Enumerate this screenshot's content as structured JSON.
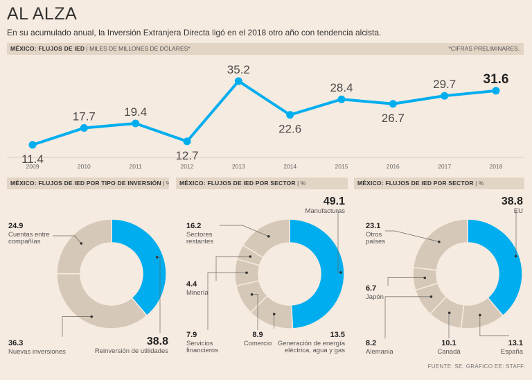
{
  "header": {
    "title": "AL ALZA",
    "subtitle": "En su acumulado anual, la Inversión Extranjera Directa ligó en el 2018 otro año con tendencia alcista."
  },
  "line_section": {
    "label_bold": "MÉXICO: FLUJOS DE IED",
    "label_unit": "MILES DE MILLONES DE DÓLARES*",
    "note": "*CIFRAS PRELIMINARES."
  },
  "donut_sections": [
    {
      "label_bold": "MÉXICO: FLUJOS DE IED POR TIPO DE INVERSIÓN",
      "label_unit": "%"
    },
    {
      "label_bold": "MÉXICO: FLUJOS DE IED POR SECTOR",
      "label_unit": "%"
    },
    {
      "label_bold": "MÉXICO: FLUJOS DE IED POR SECTOR",
      "label_unit": "%"
    }
  ],
  "source": "FUENTE: SE. GRÁFICO EE: STAFF.",
  "colors": {
    "accent": "#00aeef",
    "neutral": "#d6c8b8",
    "background": "#f6ebe0",
    "bar": "#e3d5c5"
  },
  "chart_data": [
    {
      "type": "line",
      "title": "MÉXICO: FLUJOS DE IED",
      "ylabel": "MILES DE MILLONES DE DÓLARES*",
      "x": [
        "2009",
        "2010",
        "2011",
        "2012",
        "2013",
        "2014",
        "2015",
        "2016",
        "2017",
        "2018"
      ],
      "values": [
        11.4,
        17.7,
        19.4,
        12.7,
        35.2,
        22.6,
        28.4,
        26.7,
        29.7,
        31.6
      ],
      "labels": [
        "11.4",
        "17.7",
        "19.4",
        "12.7",
        "35.2",
        "22.6",
        "28.4",
        "26.7",
        "29.7",
        "31.6"
      ],
      "ylim": [
        8,
        37
      ]
    },
    {
      "type": "pie",
      "title": "MÉXICO: FLUJOS DE IED POR TIPO DE INVERSIÓN",
      "slices": [
        {
          "name": "Reinversión de utilidades",
          "value": 38.8,
          "label": "38.8",
          "highlight": true
        },
        {
          "name": "Nuevas inversiones",
          "value": 36.3,
          "label": "36.3"
        },
        {
          "name": "Cuentas entre compañías",
          "value": 24.9,
          "label": "24.9"
        }
      ]
    },
    {
      "type": "pie",
      "title": "MÉXICO: FLUJOS DE IED POR SECTOR",
      "slices": [
        {
          "name": "Manufacturas",
          "value": 49.1,
          "label": "49.1",
          "highlight": true
        },
        {
          "name": "Generación de energía eléctrica, agua y gas",
          "value": 13.5,
          "label": "13.5"
        },
        {
          "name": "Comercio",
          "value": 8.9,
          "label": "8.9"
        },
        {
          "name": "Servicios financieros",
          "value": 7.9,
          "label": "7.9"
        },
        {
          "name": "Minería",
          "value": 4.4,
          "label": "4.4"
        },
        {
          "name": "Sectores restantes",
          "value": 16.2,
          "label": "16.2"
        }
      ]
    },
    {
      "type": "pie",
      "title": "MÉXICO: FLUJOS DE IED POR SECTOR",
      "slices": [
        {
          "name": "EU",
          "value": 38.8,
          "label": "38.8",
          "highlight": true
        },
        {
          "name": "España",
          "value": 13.1,
          "label": "13.1"
        },
        {
          "name": "Canadá",
          "value": 10.1,
          "label": "10.1"
        },
        {
          "name": "Alemania",
          "value": 8.2,
          "label": "8.2"
        },
        {
          "name": "Japón",
          "value": 6.7,
          "label": "6.7"
        },
        {
          "name": "Otros países",
          "value": 23.1,
          "label": "23.1"
        }
      ]
    }
  ]
}
